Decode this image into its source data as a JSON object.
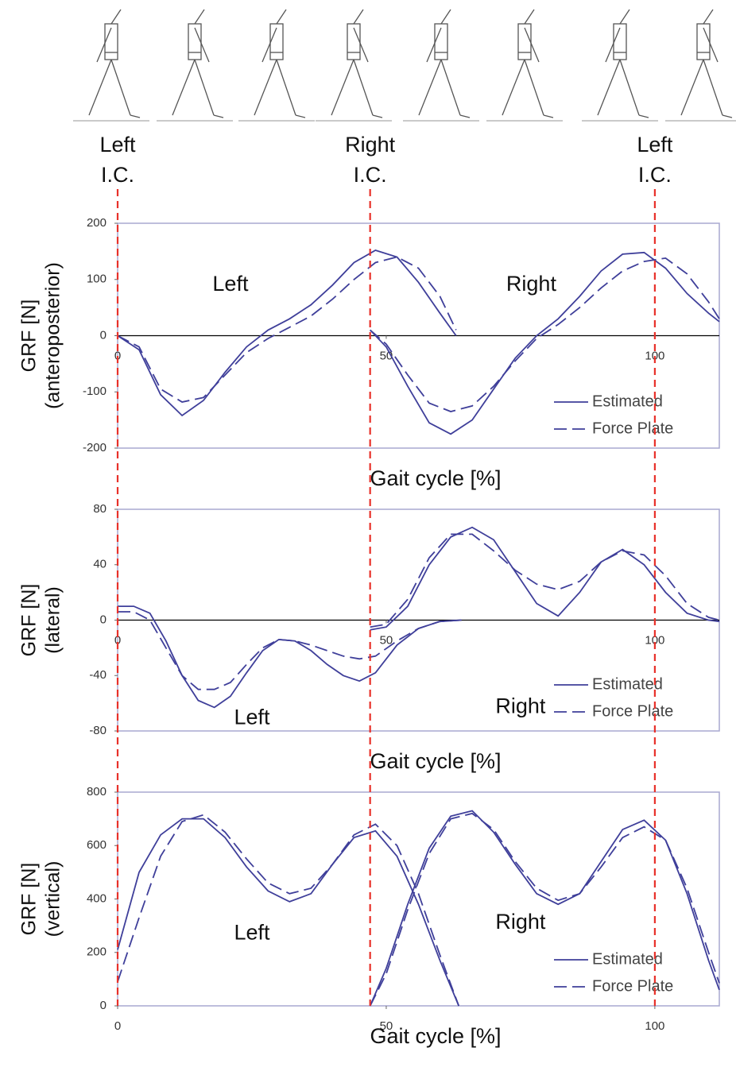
{
  "events": [
    {
      "x": 0,
      "label": [
        "Left",
        "I.C."
      ]
    },
    {
      "x": 47,
      "label": [
        "Right",
        "I.C."
      ]
    },
    {
      "x": 100,
      "label": [
        "Left",
        "I.C."
      ]
    }
  ],
  "chart_data": [
    {
      "type": "line",
      "xlabel": "Gait cycle [%]",
      "ylabel": [
        "GRF [N]",
        "(anteroposterior)"
      ],
      "xlim": [
        0,
        112
      ],
      "xticks": [
        0,
        50,
        100
      ],
      "ylim": [
        -200,
        200
      ],
      "yticks": [
        -200,
        -100,
        0,
        100,
        200
      ],
      "legend": "lower right",
      "annotations": [
        {
          "text": "Left",
          "x": 21,
          "y": 90
        },
        {
          "text": "Right",
          "x": 77,
          "y": 90
        }
      ],
      "series": [
        {
          "name": "Estimated",
          "color": "#3f3f9a",
          "dash": false,
          "pieces": [
            {
              "x": [
                0,
                4,
                8,
                12,
                16,
                20,
                24,
                28,
                32,
                36,
                40,
                44,
                48,
                52,
                56,
                60,
                63
              ],
              "values": [
                0,
                -25,
                -105,
                -142,
                -115,
                -65,
                -20,
                10,
                30,
                55,
                90,
                130,
                152,
                140,
                95,
                40,
                0
              ]
            },
            {
              "x": [
                47,
                50,
                54,
                58,
                62,
                66,
                70,
                74,
                78,
                82,
                86,
                90,
                94,
                98,
                102,
                106,
                110,
                112
              ],
              "values": [
                10,
                -20,
                -90,
                -155,
                -175,
                -150,
                -95,
                -40,
                0,
                30,
                70,
                115,
                145,
                148,
                120,
                75,
                40,
                25
              ]
            }
          ]
        },
        {
          "name": "Force Plate",
          "color": "#3f3f9a",
          "dash": true,
          "pieces": [
            {
              "x": [
                0,
                4,
                8,
                12,
                16,
                20,
                24,
                28,
                32,
                36,
                40,
                44,
                48,
                52,
                56,
                60,
                63
              ],
              "values": [
                0,
                -20,
                -95,
                -118,
                -110,
                -70,
                -30,
                -5,
                15,
                35,
                65,
                100,
                130,
                140,
                120,
                70,
                10
              ]
            },
            {
              "x": [
                47,
                50,
                54,
                58,
                62,
                66,
                70,
                74,
                78,
                82,
                86,
                90,
                94,
                98,
                102,
                106,
                110,
                112
              ],
              "values": [
                10,
                -15,
                -70,
                -120,
                -135,
                -125,
                -90,
                -45,
                -5,
                20,
                50,
                85,
                115,
                132,
                138,
                110,
                60,
                30
              ]
            }
          ]
        }
      ]
    },
    {
      "type": "line",
      "xlabel": "Gait cycle [%]",
      "ylabel": [
        "GRF [N]",
        "(lateral)"
      ],
      "xlim": [
        0,
        112
      ],
      "xticks": [
        0,
        50,
        100
      ],
      "ylim": [
        -80,
        80
      ],
      "yticks": [
        -80,
        -40,
        0,
        40,
        80
      ],
      "legend": "lower right",
      "annotations": [
        {
          "text": "Left",
          "x": 25,
          "y": -71
        },
        {
          "text": "Right",
          "x": 75,
          "y": -63
        }
      ],
      "series": [
        {
          "name": "Estimated",
          "color": "#3f3f9a",
          "dash": false,
          "pieces": [
            {
              "x": [
                0,
                3,
                6,
                9,
                12,
                15,
                18,
                21,
                24,
                27,
                30,
                33,
                36,
                39,
                42,
                45,
                48,
                52,
                56,
                60,
                64
              ],
              "values": [
                10,
                10,
                5,
                -15,
                -40,
                -58,
                -63,
                -55,
                -38,
                -22,
                -14,
                -15,
                -22,
                -32,
                -40,
                -44,
                -38,
                -18,
                -6,
                -1,
                0
              ]
            },
            {
              "x": [
                47,
                50,
                54,
                58,
                62,
                66,
                70,
                74,
                78,
                82,
                86,
                90,
                94,
                98,
                102,
                106,
                110,
                112
              ],
              "values": [
                -7,
                -5,
                10,
                40,
                60,
                67,
                58,
                35,
                12,
                3,
                20,
                42,
                51,
                40,
                20,
                5,
                0,
                -1
              ]
            }
          ]
        },
        {
          "name": "Force Plate",
          "color": "#3f3f9a",
          "dash": true,
          "pieces": [
            {
              "x": [
                0,
                3,
                6,
                9,
                12,
                15,
                18,
                21,
                24,
                27,
                30,
                33,
                36,
                39,
                42,
                45,
                48,
                52,
                56,
                60,
                64
              ],
              "values": [
                6,
                6,
                0,
                -20,
                -40,
                -50,
                -50,
                -45,
                -32,
                -20,
                -14,
                -15,
                -18,
                -22,
                -26,
                -28,
                -26,
                -15,
                -6,
                -1,
                0
              ]
            },
            {
              "x": [
                47,
                50,
                54,
                58,
                62,
                66,
                70,
                74,
                78,
                82,
                86,
                90,
                94,
                98,
                102,
                106,
                110,
                112
              ],
              "values": [
                -5,
                -3,
                15,
                45,
                62,
                62,
                50,
                36,
                26,
                22,
                28,
                42,
                50,
                47,
                32,
                12,
                2,
                0
              ]
            }
          ]
        }
      ]
    },
    {
      "type": "line",
      "xlabel": "Gait cycle [%]",
      "ylabel": [
        "GRF [N]",
        "(vertical)"
      ],
      "xlim": [
        0,
        112
      ],
      "xticks": [
        0,
        50,
        100
      ],
      "ylim": [
        0,
        800
      ],
      "yticks": [
        0,
        200,
        400,
        600,
        800
      ],
      "legend": "lower right",
      "annotations": [
        {
          "text": "Left",
          "x": 25,
          "y": 270
        },
        {
          "text": "Right",
          "x": 75,
          "y": 310
        }
      ],
      "series": [
        {
          "name": "Estimated",
          "color": "#3f3f9a",
          "dash": false,
          "pieces": [
            {
              "x": [
                0,
                4,
                8,
                12,
                16,
                20,
                24,
                28,
                32,
                36,
                40,
                44,
                48,
                52,
                56,
                60,
                63.5
              ],
              "values": [
                210,
                500,
                640,
                700,
                700,
                630,
                520,
                430,
                390,
                420,
                530,
                630,
                655,
                560,
                380,
                170,
                0
              ]
            },
            {
              "x": [
                47,
                50,
                54,
                58,
                62,
                66,
                70,
                74,
                78,
                82,
                86,
                90,
                94,
                98,
                102,
                106,
                110,
                112
              ],
              "values": [
                0,
                140,
                380,
                590,
                710,
                730,
                650,
                530,
                420,
                380,
                420,
                540,
                660,
                695,
                620,
                420,
                170,
                60
              ]
            }
          ]
        },
        {
          "name": "Force Plate",
          "color": "#3f3f9a",
          "dash": true,
          "pieces": [
            {
              "x": [
                0,
                4,
                8,
                12,
                16,
                20,
                24,
                28,
                32,
                36,
                40,
                44,
                48,
                52,
                56,
                60,
                63.5
              ],
              "values": [
                90,
                330,
                560,
                690,
                715,
                650,
                550,
                460,
                420,
                440,
                530,
                640,
                680,
                600,
                420,
                190,
                0
              ]
            },
            {
              "x": [
                47,
                50,
                54,
                58,
                62,
                66,
                70,
                74,
                78,
                82,
                86,
                90,
                94,
                98,
                102,
                106,
                110,
                112
              ],
              "values": [
                0,
                120,
                360,
                570,
                700,
                720,
                660,
                540,
                440,
                395,
                420,
                520,
                630,
                670,
                620,
                440,
                200,
                85
              ]
            }
          ]
        }
      ]
    }
  ]
}
